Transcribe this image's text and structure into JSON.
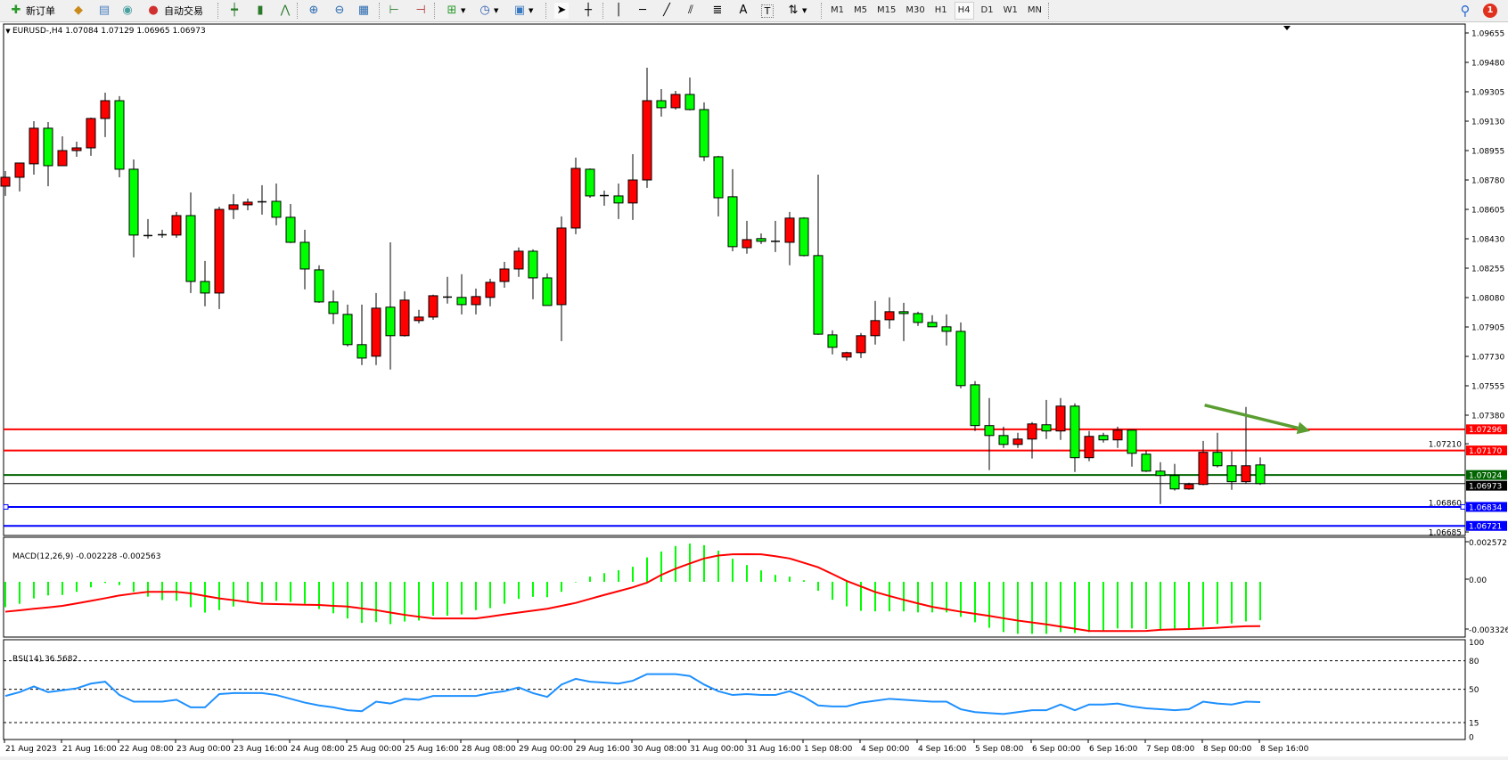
{
  "toolbar": {
    "new_order_label": "新订单",
    "auto_trading_label": "自动交易",
    "timeframes": [
      "M1",
      "M5",
      "M15",
      "M30",
      "H1",
      "H4",
      "D1",
      "W1",
      "MN"
    ],
    "active_timeframe": "H4",
    "notification_count": "1",
    "icons": [
      "new-order-icon",
      "market-watch-icon",
      "navigator-icon",
      "signals-icon",
      "auto-trading-icon",
      "bar-chart-icon",
      "candlestick-icon",
      "line-chart-icon",
      "zoom-in-icon",
      "zoom-out-icon",
      "tile-windows-icon",
      "chart-shift-icon",
      "auto-scroll-icon",
      "indicators-icon",
      "periods-icon",
      "templates-icon",
      "cursor-icon",
      "crosshair-icon",
      "vertical-line-icon",
      "horizontal-line-icon",
      "trendline-icon",
      "equidistant-channel-icon",
      "fibonacci-icon",
      "text-icon",
      "text-label-icon",
      "arrows-icon",
      "search-icon",
      "notification-icon"
    ]
  },
  "chart": {
    "header": "EURUSD-,H4  1.07084 1.07129 1.06965 1.06973",
    "bull_color": "#ff0000",
    "bear_color": "#00ff00"
  },
  "chart_data": {
    "type": "candlestick",
    "symbol": "EURUSD-",
    "timeframe": "H4",
    "ylim": [
      1.06685,
      1.09655
    ],
    "price_ticks": [
      "1.09655",
      "1.09480",
      "1.09305",
      "1.09130",
      "1.08955",
      "1.08780",
      "1.08605",
      "1.08430",
      "1.08255",
      "1.08080",
      "1.07905",
      "1.07730",
      "1.07555",
      "1.07380",
      "1.07210",
      "1.06860",
      "1.06685"
    ],
    "time_labels": [
      "21 Aug 2023",
      "21 Aug 16:00",
      "22 Aug 08:00",
      "23 Aug 00:00",
      "23 Aug 16:00",
      "24 Aug 08:00",
      "25 Aug 00:00",
      "25 Aug 16:00",
      "28 Aug 08:00",
      "29 Aug 00:00",
      "29 Aug 16:00",
      "30 Aug 08:00",
      "31 Aug 00:00",
      "31 Aug 16:00",
      "1 Sep 08:00",
      "4 Sep 00:00",
      "4 Sep 16:00",
      "5 Sep 08:00",
      "6 Sep 00:00",
      "6 Sep 16:00",
      "7 Sep 08:00",
      "8 Sep 00:00",
      "8 Sep 16:00"
    ],
    "candles_ohlc": [
      [
        1.08743,
        1.08833,
        1.08685,
        1.08796
      ],
      [
        1.08796,
        1.08881,
        1.08712,
        1.08881
      ],
      [
        1.08876,
        1.0913,
        1.08812,
        1.09088
      ],
      [
        1.09088,
        1.09125,
        1.08743,
        1.08865
      ],
      [
        1.08865,
        1.0904,
        1.08865,
        1.08955
      ],
      [
        1.08955,
        1.09008,
        1.08918,
        1.08971
      ],
      [
        1.08971,
        1.09151,
        1.08924,
        1.09146
      ],
      [
        1.09146,
        1.093,
        1.09035,
        1.09252
      ],
      [
        1.09252,
        1.09279,
        1.08796,
        1.08844
      ],
      [
        1.08844,
        1.08902,
        1.08319,
        1.08452
      ],
      [
        1.08447,
        1.08547,
        1.08431,
        1.08449
      ],
      [
        1.08452,
        1.08484,
        1.08436,
        1.08454
      ],
      [
        1.08452,
        1.0859,
        1.08436,
        1.08568
      ],
      [
        1.08568,
        1.08706,
        1.08107,
        1.08176
      ],
      [
        1.08176,
        1.08298,
        1.08028,
        1.08107
      ],
      [
        1.08107,
        1.08621,
        1.08012,
        1.08605
      ],
      [
        1.08605,
        1.08696,
        1.08547,
        1.08632
      ],
      [
        1.08632,
        1.08669,
        1.086,
        1.08648
      ],
      [
        1.08648,
        1.08749,
        1.08574,
        1.0865
      ],
      [
        1.08653,
        1.08759,
        1.0851,
        1.08558
      ],
      [
        1.08558,
        1.08637,
        1.08404,
        1.08409
      ],
      [
        1.08409,
        1.08484,
        1.08129,
        1.0825
      ],
      [
        1.08245,
        1.08272,
        1.08049,
        1.08054
      ],
      [
        1.08054,
        1.08123,
        1.07922,
        1.07985
      ],
      [
        1.0798,
        1.08038,
        1.07789,
        1.078
      ],
      [
        1.078,
        1.08038,
        1.07678,
        1.0772
      ],
      [
        1.07731,
        1.08107,
        1.07678,
        1.08017
      ],
      [
        1.08023,
        1.08409,
        1.07652,
        1.07853
      ],
      [
        1.07853,
        1.08118,
        1.07848,
        1.08065
      ],
      [
        1.07943,
        1.08007,
        1.07927,
        1.07964
      ],
      [
        1.07964,
        1.08097,
        1.07948,
        1.08091
      ],
      [
        1.08081,
        1.08203,
        1.08044,
        1.08083
      ],
      [
        1.08081,
        1.08219,
        1.0798,
        1.08038
      ],
      [
        1.08038,
        1.08134,
        1.0798,
        1.08086
      ],
      [
        1.08081,
        1.08192,
        1.08028,
        1.08171
      ],
      [
        1.08176,
        1.08293,
        1.08139,
        1.0825
      ],
      [
        1.0825,
        1.08378,
        1.08203,
        1.08356
      ],
      [
        1.08356,
        1.08367,
        1.0807,
        1.08197
      ],
      [
        1.08197,
        1.08224,
        1.08033,
        1.08033
      ],
      [
        1.08038,
        1.08563,
        1.07821,
        1.08494
      ],
      [
        1.08494,
        1.08913,
        1.08457,
        1.08849
      ],
      [
        1.08844,
        1.08849,
        1.08674,
        1.08685
      ],
      [
        1.08685,
        1.08717,
        1.08627,
        1.08687
      ],
      [
        1.08685,
        1.08759,
        1.08547,
        1.08643
      ],
      [
        1.08643,
        1.08934,
        1.08542,
        1.0878
      ],
      [
        1.0878,
        1.09448,
        1.08733,
        1.09252
      ],
      [
        1.09252,
        1.09321,
        1.09157,
        1.0921
      ],
      [
        1.0921,
        1.0931,
        1.09199,
        1.09289
      ],
      [
        1.09289,
        1.0939,
        1.09194,
        1.09199
      ],
      [
        1.09199,
        1.09242,
        1.08892,
        1.08918
      ],
      [
        1.08918,
        1.08924,
        1.08563,
        1.08674
      ],
      [
        1.0868,
        1.08844,
        1.08356,
        1.08383
      ],
      [
        1.08377,
        1.08537,
        1.08341,
        1.08425
      ],
      [
        1.08431,
        1.08462,
        1.08399,
        1.08415
      ],
      [
        1.08415,
        1.08537,
        1.08351,
        1.08413
      ],
      [
        1.08409,
        1.0859,
        1.08272,
        1.08553
      ],
      [
        1.08553,
        1.08558,
        1.08325,
        1.0833
      ],
      [
        1.0833,
        1.08812,
        1.07858,
        1.07862
      ],
      [
        1.07858,
        1.07885,
        1.07742,
        1.07784
      ],
      [
        1.07726,
        1.07758,
        1.07705,
        1.07752
      ],
      [
        1.07752,
        1.07869,
        1.0772,
        1.07853
      ],
      [
        1.07853,
        1.0806,
        1.078,
        1.07943
      ],
      [
        1.07948,
        1.08081,
        1.07895,
        1.07996
      ],
      [
        1.07996,
        1.08049,
        1.07821,
        1.07985
      ],
      [
        1.07985,
        1.07996,
        1.07911,
        1.07932
      ],
      [
        1.07932,
        1.07975,
        1.07906,
        1.07906
      ],
      [
        1.07906,
        1.0798,
        1.07795,
        1.07879
      ],
      [
        1.07879,
        1.07932,
        1.0754,
        1.07556
      ],
      [
        1.07561,
        1.07583,
        1.07286,
        1.07318
      ],
      [
        1.07318,
        1.07482,
        1.07053,
        1.07259
      ],
      [
        1.07259,
        1.07312,
        1.07185,
        1.07206
      ],
      [
        1.07206,
        1.07275,
        1.07185,
        1.07238
      ],
      [
        1.07238,
        1.07339,
        1.07122,
        1.07328
      ],
      [
        1.07323,
        1.07471,
        1.07238,
        1.07286
      ],
      [
        1.07286,
        1.07482,
        1.07233,
        1.07434
      ],
      [
        1.07434,
        1.0745,
        1.07042,
        1.07127
      ],
      [
        1.07127,
        1.07286,
        1.07106,
        1.07254
      ],
      [
        1.07259,
        1.07275,
        1.07217,
        1.07233
      ],
      [
        1.07233,
        1.07312,
        1.07185,
        1.07291
      ],
      [
        1.07291,
        1.07291,
        1.07074,
        1.07153
      ],
      [
        1.07148,
        1.07169,
        1.07042,
        1.07047
      ],
      [
        1.07047,
        1.071,
        1.06851,
        1.07021
      ],
      [
        1.07021,
        1.0709,
        1.06931,
        1.06941
      ],
      [
        1.06941,
        1.06978,
        1.06936,
        1.06968
      ],
      [
        1.06968,
        1.07227,
        1.06963,
        1.07159
      ],
      [
        1.07159,
        1.07275,
        1.07069,
        1.07079
      ],
      [
        1.07079,
        1.07164,
        1.06936,
        1.06984
      ],
      [
        1.06984,
        1.07429,
        1.06973,
        1.07079
      ],
      [
        1.07084,
        1.07129,
        1.06965,
        1.06973
      ]
    ],
    "hlines": [
      {
        "price": 1.07296,
        "label": "1.07296",
        "color": "#ff0000"
      },
      {
        "price": 1.0717,
        "label": "1.07170",
        "color": "#ff0000"
      },
      {
        "price": 1.07024,
        "label": "1.07024",
        "color": "#006400"
      },
      {
        "price": 1.06973,
        "label": "1.06973",
        "color": "#000000"
      },
      {
        "price": 1.06834,
        "label": "1.06834",
        "color": "#0000ff"
      },
      {
        "price": 1.06721,
        "label": "1.06721",
        "color": "#0000ff"
      }
    ],
    "arrow": {
      "color": "#5a9e32",
      "start": {
        "bar": 84.1,
        "price": 1.0744
      },
      "end": {
        "bar": 91.5,
        "price": 1.07286
      }
    },
    "macd": {
      "label": "MACD(12,26,9) -0.002228 -0.002563",
      "axis_labels": [
        "0.002572",
        "0.00",
        "-0.003326"
      ],
      "range": [
        -0.003326,
        0.002572
      ],
      "histogram_color": "#00ff00",
      "signal_color": "#ff0000",
      "main": [
        -0.00147,
        -0.00127,
        -0.00096,
        -0.00079,
        -0.00076,
        -0.00058,
        -0.00032,
        -7e-05,
        -0.00019,
        -0.00058,
        -0.00086,
        -0.00106,
        -0.0011,
        -0.00147,
        -0.00178,
        -0.00164,
        -0.00143,
        -0.00117,
        -0.00117,
        -0.0011,
        -0.00117,
        -0.00127,
        -0.00157,
        -0.00182,
        -0.00212,
        -0.00238,
        -0.00233,
        -0.00245,
        -0.0023,
        -0.00224,
        -0.00196,
        -0.00196,
        -0.00189,
        -0.00164,
        -0.00152,
        -0.00127,
        -0.00099,
        -0.00087,
        -0.00089,
        -0.00058,
        -3e-05,
        0.0003,
        0.0005,
        0.00067,
        0.00087,
        0.00141,
        0.00175,
        0.00207,
        0.00221,
        0.00212,
        0.0018,
        0.00133,
        0.00097,
        0.00066,
        0.0004,
        0.0003,
        9e-05,
        -0.00052,
        -0.00104,
        -0.00142,
        -0.00168,
        -0.00171,
        -0.00171,
        -0.00171,
        -0.00177,
        -0.00177,
        -0.00177,
        -0.00203,
        -0.00234,
        -0.00266,
        -0.00291,
        -0.00301,
        -0.00301,
        -0.00301,
        -0.00291,
        -0.00296,
        -0.00291,
        -0.00284,
        -0.0027,
        -0.0027,
        -0.00273,
        -0.00273,
        -0.00273,
        -0.00273,
        -0.0026,
        -0.00244,
        -0.00241,
        -0.00229,
        -0.002228
      ],
      "signal": [
        -0.00173,
        -0.00165,
        -0.00156,
        -0.00148,
        -0.00139,
        -0.00125,
        -0.0011,
        -0.00095,
        -0.00079,
        -0.00068,
        -0.00058,
        -0.00058,
        -0.00058,
        -0.00067,
        -0.00082,
        -0.00096,
        -0.00106,
        -0.00117,
        -0.00127,
        -0.00129,
        -0.00131,
        -0.00133,
        -0.00134,
        -0.00139,
        -0.00143,
        -0.00154,
        -0.00164,
        -0.00178,
        -0.00191,
        -0.00202,
        -0.00212,
        -0.00212,
        -0.00212,
        -0.00212,
        -0.00201,
        -0.00189,
        -0.00178,
        -0.00167,
        -0.00156,
        -0.00139,
        -0.00122,
        -0.00099,
        -0.00076,
        -0.00054,
        -0.00032,
        -5e-05,
        0.0004,
        0.00076,
        0.00106,
        0.00135,
        0.00152,
        0.00159,
        0.0016,
        0.00159,
        0.00148,
        0.00135,
        0.0011,
        0.00084,
        0.00045,
        5e-05,
        -0.00027,
        -0.00059,
        -0.00082,
        -0.00104,
        -0.00125,
        -0.00145,
        -0.00159,
        -0.00173,
        -0.00185,
        -0.00197,
        -0.00211,
        -0.00224,
        -0.00235,
        -0.00246,
        -0.00259,
        -0.00271,
        -0.00284,
        -0.00285,
        -0.00285,
        -0.00285,
        -0.00284,
        -0.00278,
        -0.00275,
        -0.00273,
        -0.0027,
        -0.00266,
        -0.00261,
        -0.00257,
        -0.002563
      ]
    },
    "rsi": {
      "label": "RSI(14) 36.5682",
      "axis_labels": [
        "100",
        "80",
        "50",
        "15",
        "0"
      ],
      "levels": [
        80,
        50,
        15
      ],
      "range": [
        0,
        100
      ],
      "color": "#1e90ff",
      "values": [
        43,
        47,
        53,
        47,
        49,
        51,
        56,
        58,
        44,
        37,
        37,
        37,
        39,
        31,
        31,
        45,
        46,
        46,
        46,
        44,
        40,
        36,
        33,
        31,
        28,
        27,
        37,
        35,
        40,
        39,
        43,
        43,
        43,
        43,
        46,
        48,
        52,
        46,
        42,
        55,
        61,
        58,
        57,
        56,
        59,
        66,
        66,
        66,
        64,
        55,
        48,
        44,
        45,
        44,
        44,
        48,
        42,
        33,
        32,
        32,
        36,
        38,
        40,
        39,
        38,
        37,
        37,
        29,
        26,
        25,
        24,
        26,
        28,
        28,
        34,
        28,
        34,
        34,
        35,
        32,
        30,
        29,
        28,
        29,
        37,
        35,
        34,
        37,
        36.5682
      ]
    }
  }
}
